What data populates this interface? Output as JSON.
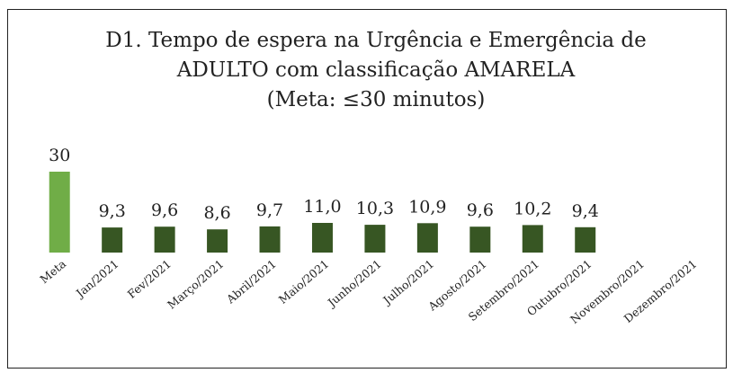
{
  "chart_data": {
    "type": "bar",
    "title": [
      "D1. Tempo de espera na Urgência e Emergência de",
      "ADULTO com classificação AMARELA",
      "(Meta: ≤30 minutos)"
    ],
    "categories": [
      "Meta",
      "Jan/2021",
      "Fev/2021",
      "Março/2021",
      "Abril/2021",
      "Maio/2021",
      "Junho/2021",
      "Julho/2021",
      "Agosto/2021",
      "Setembro/2021",
      "Outubro/2021",
      "Novembro/2021",
      "Dezembro/2021"
    ],
    "values": [
      30,
      9.3,
      9.6,
      8.6,
      9.7,
      11.0,
      10.3,
      10.9,
      9.6,
      10.2,
      9.4,
      null,
      null
    ],
    "value_labels": [
      "30",
      "9,3",
      "9,6",
      "8,6",
      "9,7",
      "11,0",
      "10,3",
      "10,9",
      "9,6",
      "10,2",
      "9,4",
      null,
      null
    ],
    "colors": [
      "#70ad47",
      "#375623",
      "#375623",
      "#375623",
      "#375623",
      "#375623",
      "#375623",
      "#375623",
      "#375623",
      "#375623",
      "#375623",
      "#375623",
      "#375623"
    ],
    "grid": false
  }
}
